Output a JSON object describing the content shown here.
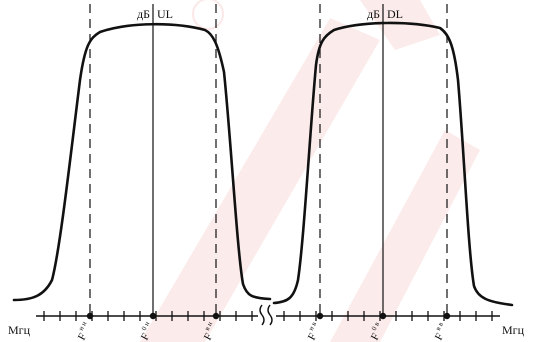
{
  "axis": {
    "unit_left": "Мгц",
    "unit_right": "Мгц"
  },
  "bands": [
    {
      "db_label": "дБ",
      "link_label": "UL",
      "markers": [
        {
          "main": "F",
          "sub": "н н"
        },
        {
          "main": "F",
          "sub": "0 н"
        },
        {
          "main": "F",
          "sub": "в н"
        }
      ]
    },
    {
      "db_label": "дБ",
      "link_label": "DL",
      "markers": [
        {
          "main": "F",
          "sub": "н в"
        },
        {
          "main": "F",
          "sub": "0 в"
        },
        {
          "main": "F",
          "sub": "в в"
        }
      ]
    }
  ],
  "colors": {
    "ink": "#111111",
    "watermark": "#e33f3f"
  }
}
